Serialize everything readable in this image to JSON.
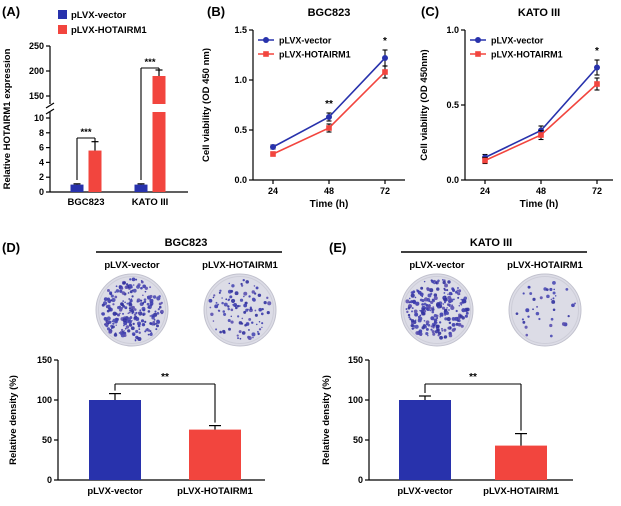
{
  "figure": {
    "colors": {
      "blue": "#2832ac",
      "red": "#f2453e",
      "plate_bg": "#dcdce6",
      "plate_ring": "#c2c2ce"
    }
  },
  "panels": {
    "A": {
      "label": "(A)"
    },
    "B": {
      "label": "(B)"
    },
    "C": {
      "label": "(C)"
    },
    "D": {
      "label": "(D)"
    },
    "E": {
      "label": "(E)"
    }
  },
  "chart_data": [
    {
      "id": "A",
      "type": "bar",
      "title": "",
      "ylabel": "Relative HOTAIRM1 expression",
      "categories": [
        "BGC823",
        "KATO III"
      ],
      "series": [
        {
          "name": "pLVX-vector",
          "color_key": "blue",
          "values": [
            1.0,
            1.0
          ],
          "errors": [
            0.1,
            0.1
          ]
        },
        {
          "name": "pLVX-HOTAIRM1",
          "color_key": "red",
          "values": [
            5.6,
            190
          ],
          "errors": [
            1.2,
            12
          ]
        }
      ],
      "axis_break": {
        "lower": [
          0,
          10
        ],
        "upper": [
          150,
          250
        ],
        "lower_ticks": [
          0,
          2,
          4,
          6,
          8,
          10
        ],
        "upper_ticks": [
          150,
          200,
          250
        ]
      },
      "legend_position": "top",
      "significance": [
        {
          "group": "BGC823",
          "label": "***"
        },
        {
          "group": "KATO III",
          "label": "***"
        }
      ]
    },
    {
      "id": "B",
      "type": "line",
      "title": "BGC823",
      "xlabel": "Time (h)",
      "ylabel": "Cell viability (OD 450 nm)",
      "x": [
        24,
        48,
        72
      ],
      "ylim": [
        0,
        1.5
      ],
      "yticks": [
        0.0,
        0.5,
        1.0,
        1.5
      ],
      "legend_position": "top-left-inside",
      "series": [
        {
          "name": "pLVX-vector",
          "color_key": "blue",
          "marker": "circle",
          "values": [
            0.33,
            0.63,
            1.22
          ],
          "errors": [
            0.02,
            0.04,
            0.08
          ]
        },
        {
          "name": "pLVX-HOTAIRM1",
          "color_key": "red",
          "marker": "square",
          "values": [
            0.26,
            0.52,
            1.08
          ],
          "errors": [
            0.02,
            0.04,
            0.06
          ]
        }
      ],
      "significance": [
        {
          "x": 48,
          "label": "**"
        },
        {
          "x": 72,
          "label": "*"
        }
      ]
    },
    {
      "id": "C",
      "type": "line",
      "title": "KATO III",
      "xlabel": "Time (h)",
      "ylabel": "Cell viability (OD 450nm)",
      "x": [
        24,
        48,
        72
      ],
      "ylim": [
        0,
        1.0
      ],
      "yticks": [
        0.0,
        0.5,
        1.0
      ],
      "legend_position": "top-left-inside",
      "series": [
        {
          "name": "pLVX-vector",
          "color_key": "blue",
          "marker": "circle",
          "values": [
            0.15,
            0.33,
            0.75
          ],
          "errors": [
            0.02,
            0.03,
            0.05
          ]
        },
        {
          "name": "pLVX-HOTAIRM1",
          "color_key": "red",
          "marker": "square",
          "values": [
            0.13,
            0.3,
            0.64
          ],
          "errors": [
            0.02,
            0.03,
            0.04
          ]
        }
      ],
      "significance": [
        {
          "x": 72,
          "label": "*"
        }
      ]
    },
    {
      "id": "D",
      "type": "bar",
      "title": "BGC823",
      "ylabel": "Relative density (%)",
      "categories": [
        "pLVX-vector",
        "pLVX-HOTAIRM1"
      ],
      "values": [
        100,
        63
      ],
      "errors": [
        8,
        5
      ],
      "ylim": [
        0,
        150
      ],
      "yticks": [
        0,
        50,
        100,
        150
      ],
      "significance": "**",
      "colonies": [
        {
          "label": "pLVX-vector",
          "density": "high"
        },
        {
          "label": "pLVX-HOTAIRM1",
          "density": "medium"
        }
      ]
    },
    {
      "id": "E",
      "type": "bar",
      "title": "KATO III",
      "ylabel": "Relative density (%)",
      "categories": [
        "pLVX-vector",
        "pLVX-HOTAIRM1"
      ],
      "values": [
        100,
        43
      ],
      "errors": [
        5,
        15
      ],
      "ylim": [
        0,
        150
      ],
      "yticks": [
        0,
        50,
        100,
        150
      ],
      "significance": "**",
      "colonies": [
        {
          "label": "pLVX-vector",
          "density": "high"
        },
        {
          "label": "pLVX-HOTAIRM1",
          "density": "low"
        }
      ]
    }
  ]
}
